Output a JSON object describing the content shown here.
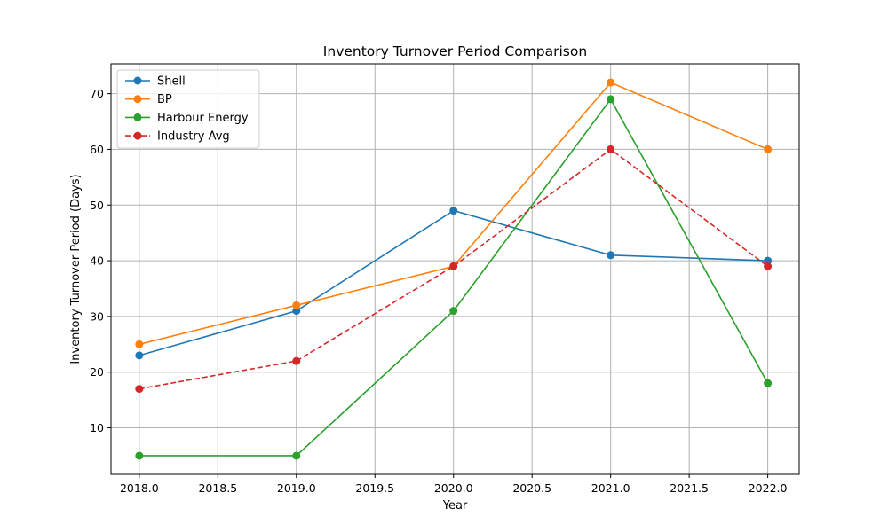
{
  "chart_data": {
    "type": "line",
    "title": "Inventory Turnover Period Comparison",
    "xlabel": "Year",
    "ylabel": "Inventory Turnover Period (Days)",
    "x": [
      2018,
      2019,
      2020,
      2021,
      2022
    ],
    "xlim": [
      2017.82,
      2022.2
    ],
    "ylim": [
      1.65,
      75.35
    ],
    "xticks": [
      2018.0,
      2018.5,
      2019.0,
      2019.5,
      2020.0,
      2020.5,
      2021.0,
      2021.5,
      2022.0
    ],
    "xtick_labels": [
      "2018.0",
      "2018.5",
      "2019.0",
      "2019.5",
      "2020.0",
      "2020.5",
      "2021.0",
      "2021.5",
      "2022.0"
    ],
    "yticks": [
      10,
      20,
      30,
      40,
      50,
      60,
      70
    ],
    "ytick_labels": [
      "10",
      "20",
      "30",
      "40",
      "50",
      "60",
      "70"
    ],
    "grid": true,
    "legend_position": "top-left",
    "series": [
      {
        "name": "Shell",
        "values": [
          23,
          31,
          49,
          41,
          40
        ],
        "color": "#1f77b4",
        "dashed": false
      },
      {
        "name": "BP",
        "values": [
          25,
          32,
          39,
          72,
          60
        ],
        "color": "#ff7f0e",
        "dashed": false
      },
      {
        "name": "Harbour Energy",
        "values": [
          5,
          5,
          31,
          69,
          18
        ],
        "color": "#2ca02c",
        "dashed": false
      },
      {
        "name": "Industry Avg",
        "values": [
          17,
          22,
          39,
          60,
          39
        ],
        "color": "#d62728",
        "dashed": true
      }
    ]
  }
}
